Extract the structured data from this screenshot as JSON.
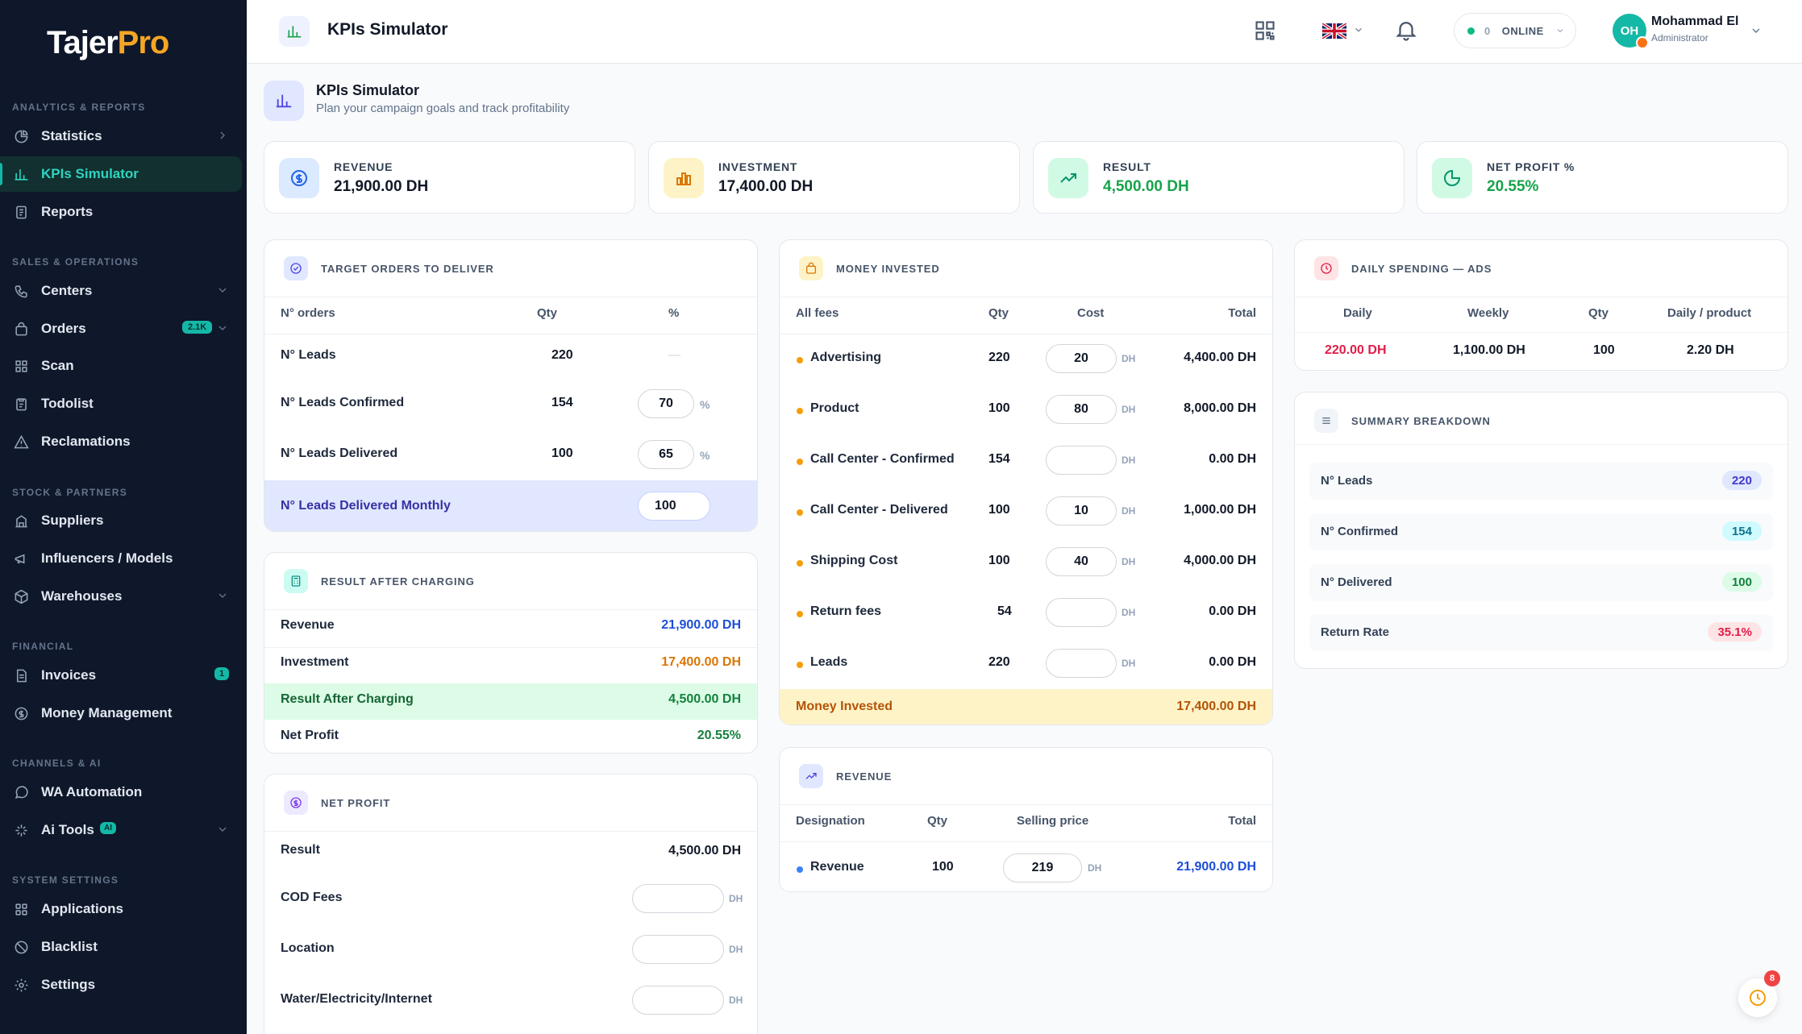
{
  "brand": {
    "part1": "Tajer",
    "part2": "Pro"
  },
  "sidebar": {
    "sections": [
      {
        "title": "ANALYTICS & REPORTS"
      },
      {
        "title": "SALES & OPERATIONS"
      },
      {
        "title": "STOCK & PARTNERS"
      },
      {
        "title": "FINANCIAL"
      },
      {
        "title": "CHANNELS & AI"
      },
      {
        "title": "SYSTEM SETTINGS"
      }
    ],
    "items": [
      {
        "label": "Statistics",
        "icon": "pie-chart-icon"
      },
      {
        "label": "KPIs Simulator",
        "icon": "bar-chart-icon",
        "active": true
      },
      {
        "label": "Reports",
        "icon": "document-icon"
      },
      {
        "label": "Centers",
        "icon": "phone-icon"
      },
      {
        "label": "Orders",
        "icon": "bag-icon",
        "badge": "2.1K"
      },
      {
        "label": "Scan",
        "icon": "scan-icon"
      },
      {
        "label": "Todolist",
        "icon": "clipboard-icon"
      },
      {
        "label": "Reclamations",
        "icon": "warning-icon"
      },
      {
        "label": "Suppliers",
        "icon": "building-icon"
      },
      {
        "label": "Influencers / Models",
        "icon": "megaphone-icon"
      },
      {
        "label": "Warehouses",
        "icon": "box-icon"
      },
      {
        "label": "Invoices",
        "icon": "invoice-icon",
        "badge": "1"
      },
      {
        "label": "Money Management",
        "icon": "coin-icon"
      },
      {
        "label": "WA Automation",
        "icon": "whatsapp-icon"
      },
      {
        "label": "Ai Tools",
        "icon": "sparkle-icon",
        "badge": "AI"
      },
      {
        "label": "Applications",
        "icon": "grid-icon"
      },
      {
        "label": "Blacklist",
        "icon": "ban-icon"
      },
      {
        "label": "Settings",
        "icon": "gear-icon"
      }
    ]
  },
  "topbar": {
    "title": "KPIs Simulator",
    "online_count": "0",
    "online_label": "ONLINE",
    "user_initials": "OH",
    "user_name": "Mohammad El",
    "user_role": "Administrator"
  },
  "page": {
    "title": "KPIs Simulator",
    "subtitle": "Plan your campaign goals and track profitability"
  },
  "kpis": [
    {
      "label": "REVENUE",
      "value": "21,900.00 DH",
      "color": "#111827"
    },
    {
      "label": "INVESTMENT",
      "value": "17,400.00 DH",
      "color": "#111827"
    },
    {
      "label": "RESULT",
      "value": "4,500.00 DH",
      "color": "#16a34a"
    },
    {
      "label": "NET PROFIT %",
      "value": "20.55%",
      "color": "#16a34a"
    }
  ],
  "target": {
    "title": "TARGET ORDERS TO DELIVER",
    "headers": [
      "N° orders",
      "Qty",
      "%"
    ],
    "rows": [
      {
        "label": "N° Leads",
        "qty": "220",
        "pct": "—"
      },
      {
        "label": "N° Leads Confirmed",
        "qty": "154",
        "pct": "70",
        "unit": "%"
      },
      {
        "label": "N° Leads Delivered",
        "qty": "100",
        "pct": "65",
        "unit": "%"
      }
    ],
    "monthly_label": "N° Leads Delivered Monthly",
    "monthly_value": "100"
  },
  "result": {
    "title": "RESULT AFTER CHARGING",
    "rows": [
      {
        "label": "Revenue",
        "value": "21,900.00 DH"
      },
      {
        "label": "Investment",
        "value": "17,400.00 DH"
      },
      {
        "label": "Result After Charging",
        "value": "4,500.00 DH"
      },
      {
        "label": "Net Profit",
        "value": "20.55%"
      }
    ]
  },
  "netprofit": {
    "title": "NET PROFIT",
    "result_label": "Result",
    "result_value": "4,500.00 DH",
    "rows": [
      {
        "label": "COD Fees"
      },
      {
        "label": "Location"
      },
      {
        "label": "Water/Electricity/Internet"
      }
    ],
    "unit": "DH"
  },
  "money": {
    "title": "MONEY INVESTED",
    "headers": [
      "All fees",
      "Qty",
      "Cost",
      "Total"
    ],
    "rows": [
      {
        "label": "Advertising",
        "qty": "220",
        "cost": "20",
        "total": "4,400.00 DH"
      },
      {
        "label": "Product",
        "qty": "100",
        "cost": "80",
        "total": "8,000.00 DH"
      },
      {
        "label": "Call Center - Confirmed",
        "qty": "154",
        "cost": "",
        "total": "0.00 DH"
      },
      {
        "label": "Call Center - Delivered",
        "qty": "100",
        "cost": "10",
        "total": "1,000.00 DH"
      },
      {
        "label": "Shipping Cost",
        "qty": "100",
        "cost": "40",
        "total": "4,000.00 DH"
      },
      {
        "label": "Return fees",
        "qty": "54",
        "cost": "",
        "total": "0.00 DH"
      },
      {
        "label": "Leads",
        "qty": "220",
        "cost": "",
        "total": "0.00 DH"
      }
    ],
    "unit": "DH",
    "footer_label": "Money Invested",
    "footer_value": "17,400.00 DH"
  },
  "revenue": {
    "title": "REVENUE",
    "headers": [
      "Designation",
      "Qty",
      "Selling price",
      "Total"
    ],
    "row": {
      "label": "Revenue",
      "qty": "100",
      "price": "219",
      "total": "21,900.00 DH"
    },
    "unit": "DH"
  },
  "daily": {
    "title": "DAILY SPENDING — ADS",
    "headers": [
      "Daily",
      "Weekly",
      "Qty",
      "Daily / product"
    ],
    "values": [
      "220.00 DH",
      "1,100.00 DH",
      "100",
      "2.20 DH"
    ]
  },
  "summary": {
    "title": "SUMMARY BREAKDOWN",
    "rows": [
      {
        "label": "N° Leads",
        "value": "220"
      },
      {
        "label": "N° Confirmed",
        "value": "154"
      },
      {
        "label": "N° Delivered",
        "value": "100"
      },
      {
        "label": "Return Rate",
        "value": "35.1%"
      }
    ]
  },
  "fab": {
    "count": "8"
  }
}
